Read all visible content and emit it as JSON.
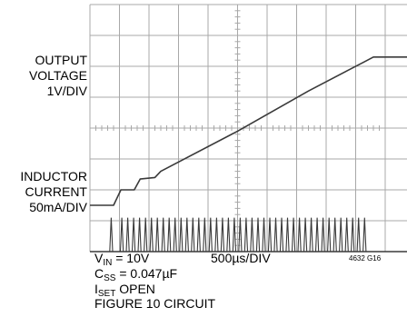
{
  "chart_data": {
    "type": "line",
    "title": "",
    "x_scale_label": "500µs/DIV",
    "x_divisions": 10,
    "y_divisions": 8,
    "grid": true,
    "channels": [
      {
        "name_lines": [
          "OUTPUT",
          "VOLTAGE",
          "1V/DIV"
        ],
        "points_div": [
          [
            0,
            6.5
          ],
          [
            0.8,
            6.5
          ],
          [
            1.05,
            6.0
          ],
          [
            1.5,
            6.0
          ],
          [
            1.7,
            5.65
          ],
          [
            2.2,
            5.6
          ],
          [
            2.4,
            5.4
          ],
          [
            5.0,
            4.1
          ],
          [
            7.4,
            2.8
          ],
          [
            8.7,
            2.15
          ],
          [
            9.3,
            1.85
          ],
          [
            9.6,
            1.7
          ],
          [
            10.0,
            1.7
          ]
        ]
      },
      {
        "name_lines": [
          "INDUCTOR",
          "CURRENT",
          "50mA/DIV"
        ],
        "baseline_div": 8.0,
        "peak_div": 6.9,
        "first_pulse_div": 0.72,
        "train_start_div": 1.08,
        "train_end_div": 9.3,
        "pulse_count": 42
      }
    ]
  },
  "conditions": {
    "vin": {
      "sym": "V",
      "sub": "IN",
      "val": " = 10V"
    },
    "css": {
      "sym": "C",
      "sub": "SS",
      "val": " = 0.047µF"
    },
    "iset": {
      "sym": "I",
      "sub": "SET",
      "val": " OPEN"
    },
    "figure": "FIGURE 10 CIRCUIT"
  },
  "code": "4632 G16",
  "colors": {
    "trace": "#3a3a3a",
    "grid": "#a8a8a8",
    "background": "#ffffff"
  }
}
